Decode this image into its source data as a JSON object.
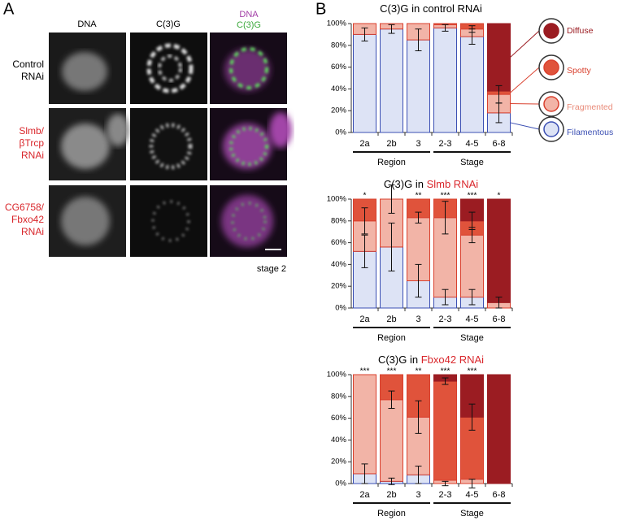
{
  "panel_a": {
    "panel_label": "A",
    "column_headers": [
      "DNA",
      "C(3)G"
    ],
    "merge_header": [
      "DNA",
      "C(3)G"
    ],
    "rows": [
      {
        "label": [
          "Control",
          "RNAi"
        ]
      },
      {
        "label": [
          "Slmb/",
          "βTrcp",
          "RNAi"
        ]
      },
      {
        "label": [
          "CG6758/",
          "Fbxo42",
          "RNAi"
        ]
      }
    ],
    "caption": "stage 2"
  },
  "panel_b_label": "B",
  "chart_data": [
    {
      "type": "stacked-bar",
      "title": "C(3)G in control RNAi",
      "categories": [
        "2a",
        "2b",
        "3",
        "2-3",
        "4-5",
        "6-8"
      ],
      "group_labels": [
        "Region",
        "Stage"
      ],
      "ylim": [
        0,
        100
      ],
      "yticks": [
        {
          "value": 0,
          "label": "0%"
        },
        {
          "value": 20,
          "label": "20%"
        },
        {
          "value": 40,
          "label": "40%"
        },
        {
          "value": 60,
          "label": "60%"
        },
        {
          "value": 80,
          "label": "80%"
        },
        {
          "value": 100,
          "label": "100%"
        }
      ],
      "legend": "right",
      "series": [
        {
          "name": "Filamentous",
          "color": "#dde3f5",
          "stroke": "#3b4fb3",
          "values": [
            90,
            95,
            85,
            96,
            88,
            18
          ],
          "errors": [
            6,
            4,
            10,
            3,
            7,
            9
          ]
        },
        {
          "name": "Fragmented",
          "color": "#f2b4a7",
          "stroke": "#d9402e",
          "values": [
            10,
            5,
            15,
            3,
            7,
            17
          ],
          "errors": [
            null,
            null,
            null,
            null,
            3,
            8
          ]
        },
        {
          "name": "Spotty",
          "color": "#e0533b",
          "stroke": "#d9402e",
          "values": [
            0,
            0,
            0,
            1,
            5,
            3
          ],
          "errors": [
            null,
            null,
            null,
            null,
            null,
            null
          ]
        },
        {
          "name": "Diffuse",
          "color": "#9b1c22",
          "stroke": "#9b1c22",
          "values": [
            0,
            0,
            0,
            0,
            0,
            62
          ],
          "errors": [
            null,
            null,
            null,
            null,
            null,
            null
          ]
        }
      ]
    },
    {
      "type": "stacked-bar",
      "title": "C(3)G in",
      "title_highlight": "Slmb RNAi",
      "categories": [
        "2a",
        "2b",
        "3",
        "2-3",
        "4-5",
        "6-8"
      ],
      "group_labels": [
        "Region",
        "Stage"
      ],
      "significance": [
        "*",
        null,
        "**",
        "***",
        "***",
        "*"
      ],
      "ylim": [
        0,
        100
      ],
      "yticks": [
        {
          "value": 0,
          "label": "0%"
        },
        {
          "value": 20,
          "label": "20%"
        },
        {
          "value": 40,
          "label": "40%"
        },
        {
          "value": 60,
          "label": "60%"
        },
        {
          "value": 80,
          "label": "80%"
        },
        {
          "value": 100,
          "label": "100%"
        }
      ],
      "series": [
        {
          "color": "#dde3f5",
          "stroke": "#3b4fb3",
          "values": [
            52,
            56,
            25,
            10,
            10,
            0
          ],
          "errors": [
            15,
            22,
            15,
            7,
            7,
            null
          ]
        },
        {
          "color": "#f2b4a7",
          "stroke": "#d9402e",
          "values": [
            28,
            44,
            58,
            73,
            57,
            5
          ],
          "errors": [
            12,
            13,
            5,
            15,
            7,
            5
          ]
        },
        {
          "color": "#e0533b",
          "stroke": "#d9402e",
          "values": [
            20,
            0,
            17,
            17,
            13,
            0
          ],
          "errors": [
            null,
            null,
            null,
            null,
            8,
            null
          ]
        },
        {
          "color": "#9b1c22",
          "stroke": "#9b1c22",
          "values": [
            0,
            0,
            0,
            0,
            20,
            95
          ],
          "errors": [
            null,
            null,
            null,
            null,
            null,
            null
          ]
        }
      ]
    },
    {
      "type": "stacked-bar",
      "title": "C(3)G in",
      "title_highlight": "Fbxo42 RNAi",
      "categories": [
        "2a",
        "2b",
        "3",
        "2-3",
        "4-5",
        "6-8"
      ],
      "group_labels": [
        "Region",
        "Stage"
      ],
      "significance": [
        "***",
        "***",
        "**",
        "***",
        "***",
        null
      ],
      "ylim": [
        0,
        100
      ],
      "yticks": [
        {
          "value": 0,
          "label": "0%"
        },
        {
          "value": 20,
          "label": "20%"
        },
        {
          "value": 40,
          "label": "40%"
        },
        {
          "value": 60,
          "label": "60%"
        },
        {
          "value": 80,
          "label": "80%"
        },
        {
          "value": 100,
          "label": "100%"
        }
      ],
      "series": [
        {
          "color": "#dde3f5",
          "stroke": "#3b4fb3",
          "values": [
            9,
            2,
            8,
            0,
            0,
            0
          ],
          "errors": [
            9,
            3,
            8,
            2,
            4,
            null
          ]
        },
        {
          "color": "#f2b4a7",
          "stroke": "#d9402e",
          "values": [
            91,
            75,
            53,
            3,
            4,
            0
          ],
          "errors": [
            null,
            8,
            15,
            null,
            null,
            null
          ]
        },
        {
          "color": "#e0533b",
          "stroke": "#d9402e",
          "values": [
            0,
            23,
            39,
            91,
            57,
            0
          ],
          "errors": [
            null,
            null,
            null,
            3,
            12,
            null
          ]
        },
        {
          "color": "#9b1c22",
          "stroke": "#9b1c22",
          "values": [
            0,
            0,
            0,
            6,
            39,
            100
          ],
          "errors": [
            null,
            null,
            null,
            null,
            null,
            null
          ]
        }
      ]
    }
  ]
}
